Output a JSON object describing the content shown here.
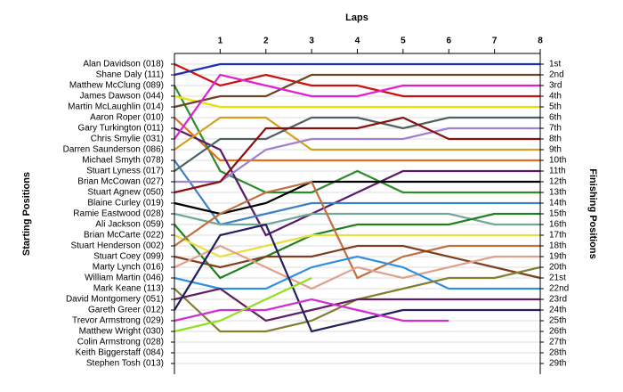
{
  "chart_data": {
    "type": "line",
    "title": "Laps",
    "y_label": "Starting Positions",
    "y2_label": "Finishing Positions",
    "xlim": [
      0,
      8
    ],
    "xticks": [
      1,
      2,
      3,
      4,
      5,
      6,
      7,
      8
    ],
    "ylim": [
      0,
      30
    ],
    "y_inverted": true,
    "grid": true,
    "yticks": [
      {
        "value": 1,
        "label": "Alan Davidson (018)"
      },
      {
        "value": 2,
        "label": "Shane Daly (111)"
      },
      {
        "value": 3,
        "label": "Matthew McClung (089)"
      },
      {
        "value": 4,
        "label": "James Dawson (044)"
      },
      {
        "value": 5,
        "label": "Martin McLaughlin (014)"
      },
      {
        "value": 6,
        "label": "Aaron Roper (010)"
      },
      {
        "value": 7,
        "label": "Gary Turkington (011)"
      },
      {
        "value": 8,
        "label": "Chris Smylie (031)"
      },
      {
        "value": 9,
        "label": "Darren Saunderson (086)"
      },
      {
        "value": 10,
        "label": "Michael Smyth (078)"
      },
      {
        "value": 11,
        "label": "Stuart Lyness (017)"
      },
      {
        "value": 12,
        "label": "Brian McCowan (027)"
      },
      {
        "value": 13,
        "label": "Stuart Agnew (050)"
      },
      {
        "value": 14,
        "label": "Blaine Curley (019)"
      },
      {
        "value": 15,
        "label": "Ramie Eastwood (028)"
      },
      {
        "value": 16,
        "label": "Ali Jackson (059)"
      },
      {
        "value": 17,
        "label": "Brian McCarte (022)"
      },
      {
        "value": 18,
        "label": "Stuart Henderson (002)"
      },
      {
        "value": 19,
        "label": "Stuart Coey (099)"
      },
      {
        "value": 20,
        "label": "Marty Lynch (016)"
      },
      {
        "value": 21,
        "label": "William Martin (046)"
      },
      {
        "value": 22,
        "label": "Mark Keane (113)"
      },
      {
        "value": 23,
        "label": "David Montgomery (051)"
      },
      {
        "value": 24,
        "label": "Gareth Greer (012)"
      },
      {
        "value": 25,
        "label": "Trevor Armstrong (029)"
      },
      {
        "value": 26,
        "label": "Matthew Wright (030)"
      },
      {
        "value": 27,
        "label": "Colin Armstrong (028)"
      },
      {
        "value": 28,
        "label": "Keith Biggerstaff (084)"
      },
      {
        "value": 29,
        "label": "Stephen Tosh (013)"
      }
    ],
    "y2ticks": [
      {
        "value": 1,
        "label": "1st"
      },
      {
        "value": 2,
        "label": "2nd"
      },
      {
        "value": 3,
        "label": "3rd"
      },
      {
        "value": 4,
        "label": "4th"
      },
      {
        "value": 5,
        "label": "5th"
      },
      {
        "value": 6,
        "label": "6th"
      },
      {
        "value": 7,
        "label": "7th"
      },
      {
        "value": 8,
        "label": "8th"
      },
      {
        "value": 9,
        "label": "9th"
      },
      {
        "value": 10,
        "label": "10th"
      },
      {
        "value": 11,
        "label": "11th"
      },
      {
        "value": 12,
        "label": "12th"
      },
      {
        "value": 13,
        "label": "13th"
      },
      {
        "value": 14,
        "label": "14th"
      },
      {
        "value": 15,
        "label": "15th"
      },
      {
        "value": 16,
        "label": "16th"
      },
      {
        "value": 17,
        "label": "17th"
      },
      {
        "value": 18,
        "label": "18th"
      },
      {
        "value": 19,
        "label": "19th"
      },
      {
        "value": 20,
        "label": "20th"
      },
      {
        "value": 21,
        "label": "21st"
      },
      {
        "value": 22,
        "label": "22nd"
      },
      {
        "value": 23,
        "label": "23rd"
      },
      {
        "value": 24,
        "label": "24th"
      },
      {
        "value": 25,
        "label": "25th"
      },
      {
        "value": 26,
        "label": "26th"
      },
      {
        "value": 27,
        "label": "27th"
      },
      {
        "value": 28,
        "label": "28th"
      },
      {
        "value": 29,
        "label": "29th"
      }
    ],
    "x": [
      0,
      1,
      2,
      3,
      4,
      5,
      6,
      7,
      8
    ],
    "series": [
      {
        "color": "#cc1010",
        "values": [
          1,
          3,
          2,
          3,
          3,
          4,
          4,
          4,
          4
        ]
      },
      {
        "color": "#1c2fb0",
        "values": [
          2,
          1,
          1,
          1,
          1,
          1,
          1,
          1,
          1
        ]
      },
      {
        "color": "#2e8b2e",
        "values": [
          3,
          11,
          13,
          13,
          11,
          13,
          13,
          13,
          13
        ]
      },
      {
        "color": "#e8e000",
        "values": [
          4,
          5,
          5,
          5,
          5,
          5,
          5,
          5,
          5
        ]
      },
      {
        "color": "#6b4423",
        "values": [
          5,
          4,
          4,
          2,
          2,
          2,
          2,
          2,
          2
        ]
      },
      {
        "color": "#e07020",
        "values": [
          6,
          10,
          10,
          10,
          10,
          10,
          10,
          10,
          10
        ]
      },
      {
        "color": "#5a1a6a",
        "values": [
          7,
          9,
          17,
          15,
          13,
          11,
          11,
          11,
          11
        ]
      },
      {
        "color": "#e020d0",
        "values": [
          8,
          2,
          3,
          4,
          4,
          3,
          3,
          3,
          3
        ]
      },
      {
        "color": "#d4a020",
        "values": [
          9,
          6,
          6,
          9,
          9,
          9,
          9,
          9,
          9
        ]
      },
      {
        "color": "#4080c0",
        "values": [
          10,
          16,
          15,
          14,
          14,
          14,
          14,
          14,
          14
        ]
      },
      {
        "color": "#506060",
        "values": [
          11,
          8,
          8,
          6,
          6,
          7,
          6,
          6,
          6
        ]
      },
      {
        "color": "#a080d0",
        "values": [
          12,
          12,
          9,
          8,
          8,
          8,
          7,
          7,
          7
        ]
      },
      {
        "color": "#8a1010",
        "values": [
          13,
          12,
          7,
          7,
          7,
          6,
          8,
          8,
          8
        ]
      },
      {
        "color": "#000000",
        "values": [
          14,
          15,
          14,
          12,
          12,
          12,
          12,
          12,
          12
        ]
      },
      {
        "color": "#70a898",
        "values": [
          15,
          16,
          16,
          15,
          15,
          15,
          15,
          16,
          16
        ]
      },
      {
        "color": "#208020",
        "values": [
          16,
          21,
          19,
          17,
          16,
          16,
          16,
          15,
          15
        ]
      },
      {
        "color": "#e8e040",
        "values": [
          17,
          19,
          18,
          17,
          17,
          17,
          17,
          17,
          17
        ]
      },
      {
        "color": "#c07040",
        "values": [
          18,
          15,
          13,
          12,
          21,
          19,
          18,
          18,
          18
        ]
      },
      {
        "color": "#804020",
        "values": [
          19,
          20,
          19,
          19,
          18,
          18,
          19,
          20,
          21
        ]
      },
      {
        "color": "#e0a090",
        "values": [
          20,
          18,
          20,
          22,
          20,
          21,
          20,
          19,
          19
        ]
      },
      {
        "color": "#3090e0",
        "values": [
          21,
          22,
          22,
          20,
          19,
          20,
          22,
          22,
          22
        ]
      },
      {
        "color": "#808030",
        "values": [
          22,
          26,
          26,
          25,
          23,
          22,
          21,
          21,
          20
        ]
      },
      {
        "color": "#602060",
        "values": [
          23,
          22,
          25,
          24,
          23,
          23,
          23,
          23,
          23
        ]
      },
      {
        "color": "#202060",
        "values": [
          24,
          17,
          16,
          26,
          25,
          24,
          24,
          24,
          24
        ]
      },
      {
        "color": "#d030d0",
        "values": [
          25,
          24,
          24,
          23,
          24,
          25,
          25,
          null,
          null
        ]
      },
      {
        "color": "#90e020",
        "values": [
          26,
          25,
          23,
          21,
          null,
          null,
          null,
          null,
          null
        ]
      }
    ]
  }
}
